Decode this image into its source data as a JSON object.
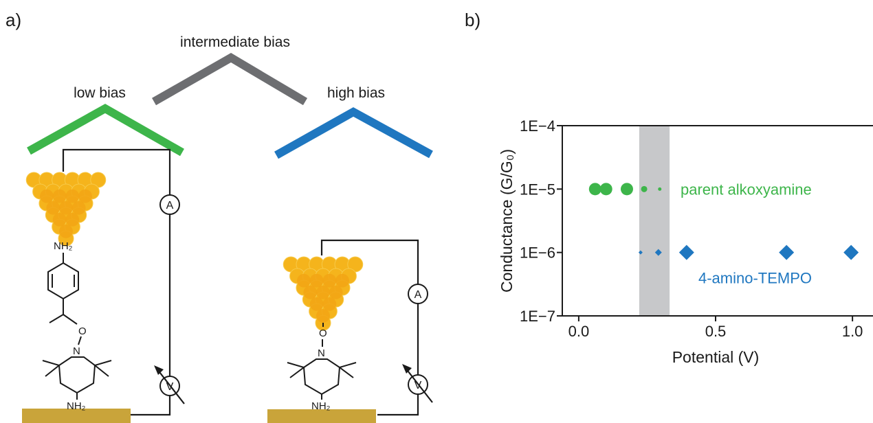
{
  "panel_a": {
    "label": "a)",
    "bias_labels": [
      "intermediate bias",
      "low bias",
      "high bias"
    ],
    "left_atoms": [
      "NH₂",
      "O",
      "N",
      "NH₂"
    ],
    "right_atoms": [
      "O",
      "N",
      "NH₂"
    ],
    "meters": [
      "A",
      "V"
    ]
  },
  "chart_data": {
    "type": "scatter",
    "panel_label": "b)",
    "x_label": "Potential (V)",
    "y_label": "Conductance (G/G₀)",
    "log_y": true,
    "xlim": [
      -0.06,
      1.075
    ],
    "ylim": [
      1e-07,
      0.0001
    ],
    "xticks": [
      {
        "value": 0,
        "label": "0.0"
      },
      {
        "value": 0.5,
        "label": "0.5"
      },
      {
        "value": 1,
        "label": "1.0"
      }
    ],
    "yticks": [
      {
        "value": 1e-07,
        "label": "1E−7"
      },
      {
        "value": 1e-06,
        "label": "1E−6"
      },
      {
        "value": 1e-05,
        "label": "1E−5"
      },
      {
        "value": 0.0001,
        "label": "1E−4"
      }
    ],
    "shaded_region": [
      0.221,
      0.332
    ],
    "shaded_color": "#c7c8ca",
    "series": [
      {
        "name": "parent alkoxyamine",
        "color": "#3db54a",
        "marker": "circle",
        "x": [
          0.06,
          0.1,
          0.176,
          0.239,
          0.296
        ],
        "values": [
          1e-05,
          1e-05,
          1e-05,
          1e-05,
          1e-05
        ],
        "sizes": [
          18,
          18,
          18,
          9,
          5
        ]
      },
      {
        "name": "4-amino-TEMPO",
        "color": "#1f77c0",
        "marker": "diamond",
        "x": [
          0.226,
          0.291,
          0.394,
          0.759,
          0.995
        ],
        "values": [
          1e-06,
          1e-06,
          1e-06,
          1e-06,
          1e-06
        ],
        "sizes": [
          6,
          10,
          22,
          22,
          22
        ]
      }
    ]
  }
}
